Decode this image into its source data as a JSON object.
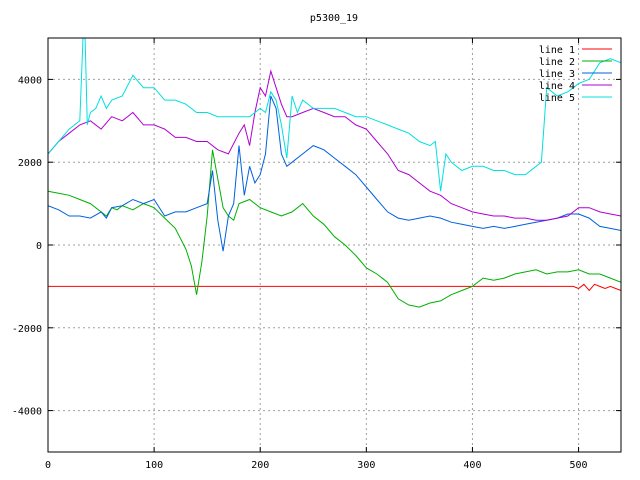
{
  "chart_data": {
    "type": "line",
    "title": "p5300_19",
    "xlabel": "",
    "ylabel": "",
    "xlim": [
      0,
      540
    ],
    "ylim": [
      -5000,
      5000
    ],
    "xticks": [
      0,
      100,
      200,
      300,
      400,
      500
    ],
    "yticks": [
      -4000,
      -2000,
      0,
      2000,
      4000
    ],
    "grid": true,
    "legend_position": "top-right",
    "series": [
      {
        "name": "line 1",
        "color": "#ff0000",
        "x": [
          0,
          100,
          200,
          300,
          400,
          495,
          500,
          505,
          510,
          515,
          520,
          525,
          530,
          535,
          540
        ],
        "y": [
          -1000,
          -1000,
          -1000,
          -1000,
          -1000,
          -1000,
          -1050,
          -950,
          -1100,
          -950,
          -1000,
          -1050,
          -1000,
          -1050,
          -1100
        ]
      },
      {
        "name": "line 2",
        "color": "#00b000",
        "x": [
          0,
          10,
          20,
          30,
          40,
          50,
          55,
          60,
          65,
          70,
          80,
          90,
          100,
          110,
          120,
          130,
          135,
          140,
          145,
          150,
          155,
          160,
          165,
          170,
          175,
          180,
          190,
          200,
          210,
          220,
          230,
          240,
          250,
          260,
          270,
          280,
          290,
          300,
          310,
          320,
          330,
          340,
          350,
          360,
          370,
          380,
          390,
          400,
          410,
          420,
          430,
          440,
          450,
          460,
          470,
          480,
          490,
          500,
          510,
          520,
          530,
          540
        ],
        "y": [
          1300,
          1250,
          1200,
          1100,
          1000,
          800,
          700,
          900,
          850,
          950,
          850,
          1000,
          900,
          650,
          400,
          -100,
          -500,
          -1200,
          -400,
          700,
          2300,
          1600,
          900,
          700,
          600,
          1000,
          1100,
          900,
          800,
          700,
          800,
          1000,
          700,
          500,
          200,
          0,
          -250,
          -550,
          -700,
          -900,
          -1300,
          -1450,
          -1500,
          -1400,
          -1350,
          -1200,
          -1100,
          -1000,
          -800,
          -850,
          -800,
          -700,
          -650,
          -600,
          -700,
          -650,
          -650,
          -600,
          -700,
          -700,
          -800,
          -900
        ]
      },
      {
        "name": "line 3",
        "color": "#0060e0",
        "x": [
          0,
          10,
          20,
          30,
          40,
          50,
          55,
          60,
          70,
          80,
          90,
          100,
          110,
          120,
          130,
          140,
          150,
          155,
          160,
          165,
          170,
          175,
          180,
          185,
          190,
          195,
          200,
          205,
          210,
          215,
          220,
          225,
          230,
          240,
          250,
          260,
          270,
          280,
          290,
          300,
          310,
          320,
          330,
          340,
          350,
          360,
          370,
          380,
          390,
          400,
          410,
          420,
          430,
          440,
          450,
          460,
          470,
          480,
          490,
          500,
          510,
          520,
          530,
          540
        ],
        "y": [
          950,
          850,
          700,
          700,
          650,
          800,
          650,
          900,
          950,
          1100,
          1000,
          1100,
          700,
          800,
          800,
          900,
          1000,
          1800,
          600,
          -150,
          700,
          1000,
          2400,
          1200,
          1900,
          1500,
          1700,
          2200,
          3600,
          3300,
          2200,
          1900,
          2000,
          2200,
          2400,
          2300,
          2100,
          1900,
          1700,
          1400,
          1100,
          800,
          650,
          600,
          650,
          700,
          650,
          550,
          500,
          450,
          400,
          450,
          400,
          450,
          500,
          550,
          600,
          650,
          750,
          750,
          650,
          450,
          400,
          350
        ]
      },
      {
        "name": "line 4",
        "color": "#b000d0",
        "x": [
          0,
          10,
          20,
          30,
          40,
          50,
          60,
          70,
          80,
          90,
          100,
          110,
          120,
          130,
          140,
          150,
          160,
          170,
          180,
          185,
          190,
          195,
          200,
          205,
          210,
          215,
          220,
          225,
          230,
          240,
          250,
          260,
          270,
          280,
          290,
          300,
          310,
          320,
          330,
          340,
          350,
          360,
          370,
          380,
          390,
          400,
          410,
          420,
          430,
          440,
          450,
          460,
          470,
          480,
          490,
          500,
          510,
          520,
          530,
          540
        ],
        "y": [
          2200,
          2500,
          2700,
          2900,
          3000,
          2800,
          3100,
          3000,
          3200,
          2900,
          2900,
          2800,
          2600,
          2600,
          2500,
          2500,
          2300,
          2200,
          2700,
          2900,
          2400,
          3200,
          3800,
          3600,
          4200,
          3800,
          3400,
          3100,
          3100,
          3200,
          3300,
          3200,
          3100,
          3100,
          2900,
          2800,
          2500,
          2200,
          1800,
          1700,
          1500,
          1300,
          1200,
          1000,
          900,
          800,
          750,
          700,
          700,
          650,
          650,
          600,
          600,
          650,
          700,
          900,
          900,
          800,
          750,
          700
        ]
      },
      {
        "name": "line 5",
        "color": "#00e0e0",
        "x": [
          0,
          10,
          20,
          30,
          33,
          35,
          37,
          40,
          45,
          50,
          55,
          60,
          70,
          80,
          90,
          100,
          110,
          120,
          130,
          140,
          150,
          160,
          170,
          180,
          190,
          200,
          205,
          210,
          215,
          220,
          225,
          230,
          235,
          240,
          250,
          260,
          270,
          280,
          290,
          300,
          310,
          320,
          330,
          340,
          350,
          360,
          365,
          370,
          375,
          380,
          390,
          400,
          410,
          420,
          430,
          440,
          450,
          460,
          465,
          470,
          475,
          480,
          490,
          500,
          510,
          520,
          530,
          540
        ],
        "y": [
          2200,
          2500,
          2800,
          3000,
          5000,
          5000,
          2900,
          3200,
          3300,
          3600,
          3300,
          3500,
          3600,
          4100,
          3800,
          3800,
          3500,
          3500,
          3400,
          3200,
          3200,
          3100,
          3100,
          3100,
          3100,
          3300,
          3200,
          3700,
          3500,
          2900,
          2100,
          3600,
          3200,
          3500,
          3300,
          3300,
          3300,
          3200,
          3100,
          3100,
          3000,
          2900,
          2800,
          2700,
          2500,
          2400,
          2500,
          1300,
          2200,
          2000,
          1800,
          1900,
          1900,
          1800,
          1800,
          1700,
          1700,
          1900,
          2000,
          3800,
          3700,
          3600,
          3700,
          3900,
          4000,
          4400,
          4500,
          4400
        ]
      }
    ]
  }
}
